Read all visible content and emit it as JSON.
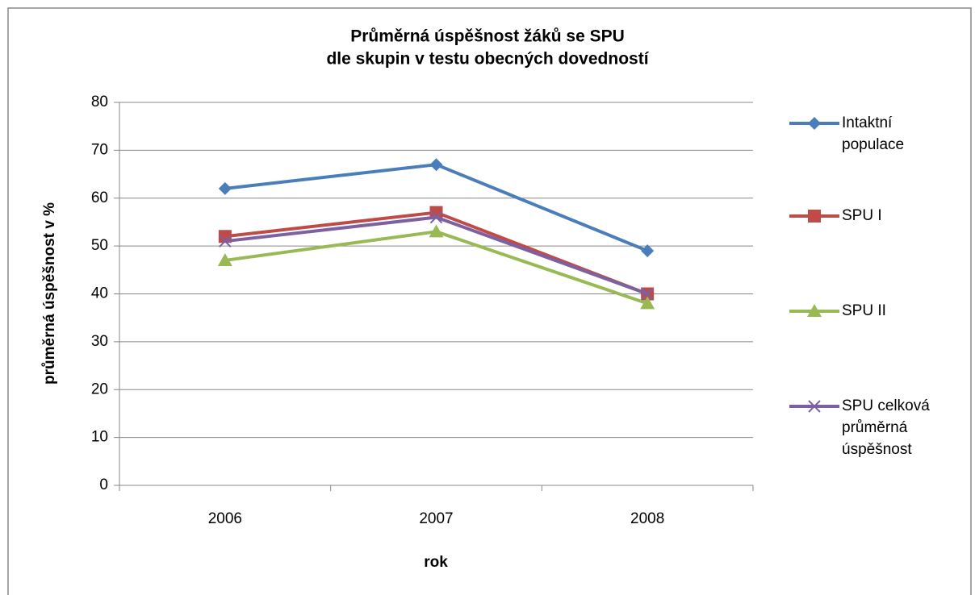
{
  "chart_data": {
    "type": "line",
    "title": [
      "Průměrná úspěšnost  žáků se SPU",
      "dle skupin v testu obecných dovedností"
    ],
    "x_label": "rok",
    "y_label": "průměrná úspěšnost v %",
    "categories": [
      "2006",
      "2007",
      "2008"
    ],
    "series": [
      {
        "name": "Intaktní populace",
        "color": "#4a7ebb",
        "marker": "diamond",
        "values": [
          62,
          67,
          49
        ]
      },
      {
        "name": "SPU I",
        "color": "#be4b48",
        "marker": "square",
        "values": [
          52,
          57,
          40
        ]
      },
      {
        "name": "SPU II",
        "color": "#98b954",
        "marker": "triangle",
        "values": [
          47,
          53,
          38
        ]
      },
      {
        "name": "SPU celková průměrná úspěšnost",
        "color": "#7d60a0",
        "marker": "x",
        "values": [
          51,
          56,
          40
        ]
      }
    ],
    "ylim": [
      0,
      80
    ],
    "yticks": [
      0,
      10,
      20,
      30,
      40,
      50,
      60,
      70,
      80
    ],
    "grid": true,
    "legend": "right"
  }
}
